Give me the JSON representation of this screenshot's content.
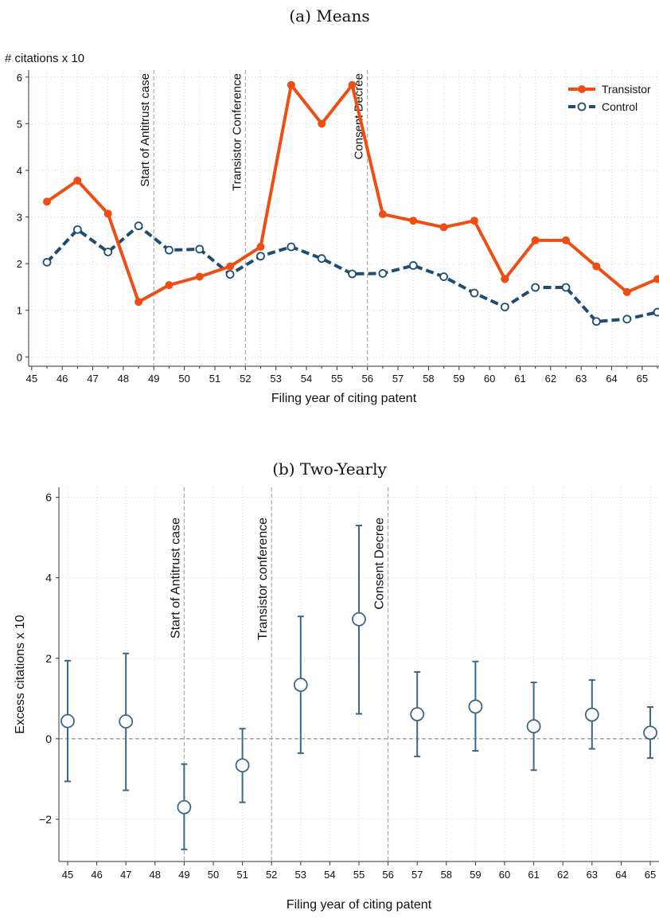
{
  "panels": [
    {
      "caption": "(a) Means"
    },
    {
      "caption": "(b) Two-Yearly"
    }
  ],
  "colors": {
    "transistor": "#ee4d14",
    "control": "#1f4d72",
    "ci": "#3c6882",
    "grid": "#d8d8d8",
    "ref": "#9a9a9a"
  },
  "chart_data": [
    {
      "type": "line",
      "title": "(a) Means",
      "ylabel": "# citations x 10",
      "xlabel": "Filing year of citing patent",
      "xlim": [
        44.9,
        65.55
      ],
      "ylim": [
        -0.2,
        6.15
      ],
      "xticks": [
        "45",
        "46",
        "47",
        "48",
        "49",
        "50",
        "51",
        "52",
        "53",
        "54",
        "55",
        "56",
        "57",
        "58",
        "59",
        "60",
        "61",
        "62",
        "63",
        "64",
        "65"
      ],
      "yticks": [
        "0",
        "1",
        "2",
        "3",
        "4",
        "5",
        "6"
      ],
      "grid": true,
      "legend": "top-right",
      "vlines": [
        {
          "x": 49,
          "label": "Start of Antitrust case"
        },
        {
          "x": 52,
          "label": "Transistor Conference"
        },
        {
          "x": 56,
          "label": "Consent Decree"
        }
      ],
      "x": [
        45.5,
        46.5,
        47.5,
        48.5,
        49.5,
        50.5,
        51.5,
        52.5,
        53.5,
        54.5,
        55.5,
        56.5,
        57.5,
        58.5,
        59.5,
        60.5,
        61.5,
        62.5,
        63.5,
        64.5,
        65.5
      ],
      "series": [
        {
          "name": "Transistor",
          "values": [
            3.33,
            3.78,
            3.07,
            1.18,
            1.54,
            1.72,
            1.94,
            2.36,
            5.83,
            5.0,
            5.83,
            3.06,
            2.92,
            2.78,
            2.92,
            1.67,
            2.5,
            2.5,
            1.94,
            1.39,
            1.67
          ]
        },
        {
          "name": "Control",
          "values": [
            2.03,
            2.73,
            2.25,
            2.81,
            2.29,
            2.31,
            1.77,
            2.16,
            2.36,
            2.11,
            1.78,
            1.79,
            1.96,
            1.72,
            1.37,
            1.07,
            1.49,
            1.49,
            0.76,
            0.81,
            0.96
          ]
        }
      ]
    },
    {
      "type": "scatter",
      "title": "(b) Two-Yearly",
      "ylabel": "Excess citations x 10",
      "xlabel": "Filing year of citing patent",
      "xlim": [
        44.7,
        65.3
      ],
      "ylim": [
        -3.05,
        6.25
      ],
      "xticks": [
        "45",
        "46",
        "47",
        "48",
        "49",
        "50",
        "51",
        "52",
        "53",
        "54",
        "55",
        "56",
        "57",
        "58",
        "59",
        "60",
        "61",
        "62",
        "63",
        "64",
        "65"
      ],
      "yticks": [
        "−2",
        "0",
        "2",
        "4",
        "6"
      ],
      "ytick_values": [
        -2,
        0,
        2,
        4,
        6
      ],
      "grid": true,
      "hline": 0,
      "vlines": [
        {
          "x": 49,
          "label": "Start of Antitrust case"
        },
        {
          "x": 52,
          "label": "Transistor conference"
        },
        {
          "x": 56,
          "label": "Consent Decree"
        }
      ],
      "x": [
        45,
        47,
        49,
        51,
        53,
        55,
        57,
        59,
        61,
        63,
        65
      ],
      "values": [
        0.44,
        0.43,
        -1.7,
        -0.66,
        1.34,
        2.97,
        0.61,
        0.8,
        0.31,
        0.6,
        0.15
      ],
      "ci_low": [
        -1.06,
        -1.28,
        -2.75,
        -1.58,
        -0.36,
        0.62,
        -0.44,
        -0.3,
        -0.78,
        -0.25,
        -0.48
      ],
      "ci_high": [
        1.94,
        2.12,
        -0.63,
        0.25,
        3.04,
        5.3,
        1.66,
        1.92,
        1.4,
        1.46,
        0.79
      ]
    }
  ]
}
